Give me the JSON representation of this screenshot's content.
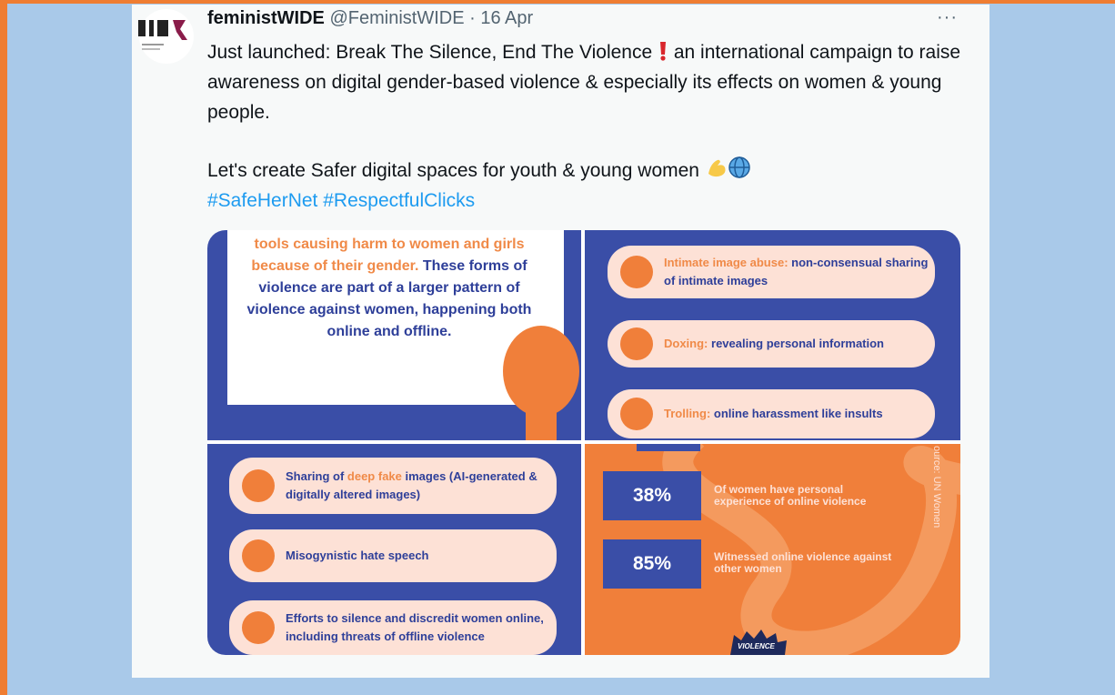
{
  "tweet": {
    "author_name": "feministWIDE",
    "handle": "@FeministWIDE",
    "separator": "·",
    "date": "16 Apr",
    "more": "···",
    "paragraph1_a": "Just launched: Break The Silence, End The Violence",
    "paragraph1_b": "an international campaign to raise awareness on digital gender-based violence & especially its effects on women & young people.",
    "paragraph2": "Let's create Safer digital spaces for youth & young women",
    "hashtags": [
      "#SafeHerNet",
      "#RespectfulClicks"
    ]
  },
  "infographic": {
    "intro_orange": "tools causing harm to women and girls because of their gender.",
    "intro_blue": "These forms of violence are part of a larger pattern of violence against women, happening both online and offline.",
    "forms_right": [
      {
        "term": "Intimate image abuse:",
        "text": "non-consensual sharing of intimate images"
      },
      {
        "term": "Doxing:",
        "text": "revealing personal information"
      },
      {
        "term": "Trolling:",
        "text": "online harassment like insults"
      }
    ],
    "forms_left": [
      {
        "before": "Sharing of",
        "term": "deep fake",
        "text": "images (AI-generated & digitally altered images)"
      },
      {
        "text": "Misogynistic hate speech"
      },
      {
        "text": "Efforts to silence and discredit women online, including threats of offline violence"
      }
    ],
    "stats": [
      {
        "value": "38%",
        "text": "Of women have personal experience of online violence"
      },
      {
        "value": "85%",
        "text": "Witnessed online violence against other women"
      }
    ],
    "source": "ource: UN Women",
    "badge": "VIOLENCE"
  }
}
